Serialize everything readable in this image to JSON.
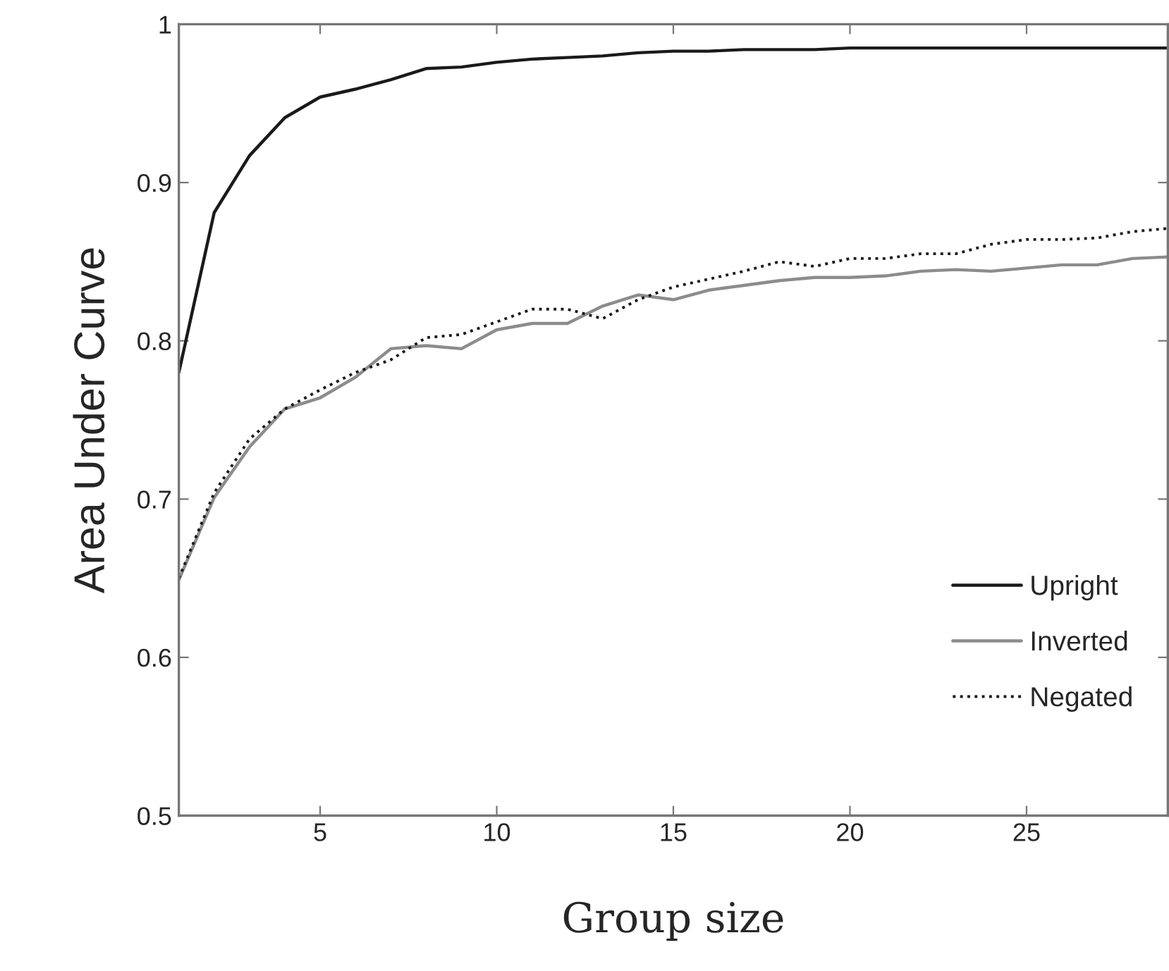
{
  "chart_data": {
    "type": "line",
    "xlabel": "Group size",
    "ylabel": "Area Under Curve",
    "x": [
      1,
      2,
      3,
      4,
      5,
      6,
      7,
      8,
      9,
      10,
      11,
      12,
      13,
      14,
      15,
      16,
      17,
      18,
      19,
      20,
      21,
      22,
      23,
      24,
      25,
      26,
      27,
      28,
      29
    ],
    "series": [
      {
        "name": "Upright",
        "color": "#1a1a1a",
        "line_style": "solid",
        "values": [
          0.78,
          0.881,
          0.917,
          0.941,
          0.954,
          0.959,
          0.965,
          0.972,
          0.973,
          0.976,
          0.978,
          0.979,
          0.98,
          0.982,
          0.983,
          0.983,
          0.984,
          0.984,
          0.984,
          0.985,
          0.985,
          0.985,
          0.985,
          0.985,
          0.985,
          0.985,
          0.985,
          0.985,
          0.985
        ]
      },
      {
        "name": "Inverted",
        "color": "#8c8c8c",
        "line_style": "solid",
        "values": [
          0.649,
          0.701,
          0.733,
          0.757,
          0.764,
          0.777,
          0.795,
          0.797,
          0.795,
          0.807,
          0.811,
          0.811,
          0.822,
          0.829,
          0.826,
          0.832,
          0.835,
          0.838,
          0.84,
          0.84,
          0.841,
          0.844,
          0.845,
          0.844,
          0.846,
          0.848,
          0.848,
          0.852,
          0.853
        ]
      },
      {
        "name": "Negated",
        "color": "#1a1a1a",
        "line_style": "dotted",
        "values": [
          0.65,
          0.704,
          0.738,
          0.757,
          0.769,
          0.78,
          0.788,
          0.802,
          0.804,
          0.812,
          0.82,
          0.82,
          0.814,
          0.826,
          0.834,
          0.839,
          0.844,
          0.85,
          0.847,
          0.852,
          0.852,
          0.855,
          0.855,
          0.861,
          0.864,
          0.864,
          0.865,
          0.869,
          0.871
        ]
      }
    ],
    "xlim": [
      1,
      29
    ],
    "ylim": [
      0.5,
      1
    ],
    "xticks": [
      5,
      10,
      15,
      20,
      25
    ],
    "yticks": [
      0.5,
      0.6,
      0.7,
      0.8,
      0.9,
      1
    ],
    "grid": false,
    "legend": "lower right"
  }
}
